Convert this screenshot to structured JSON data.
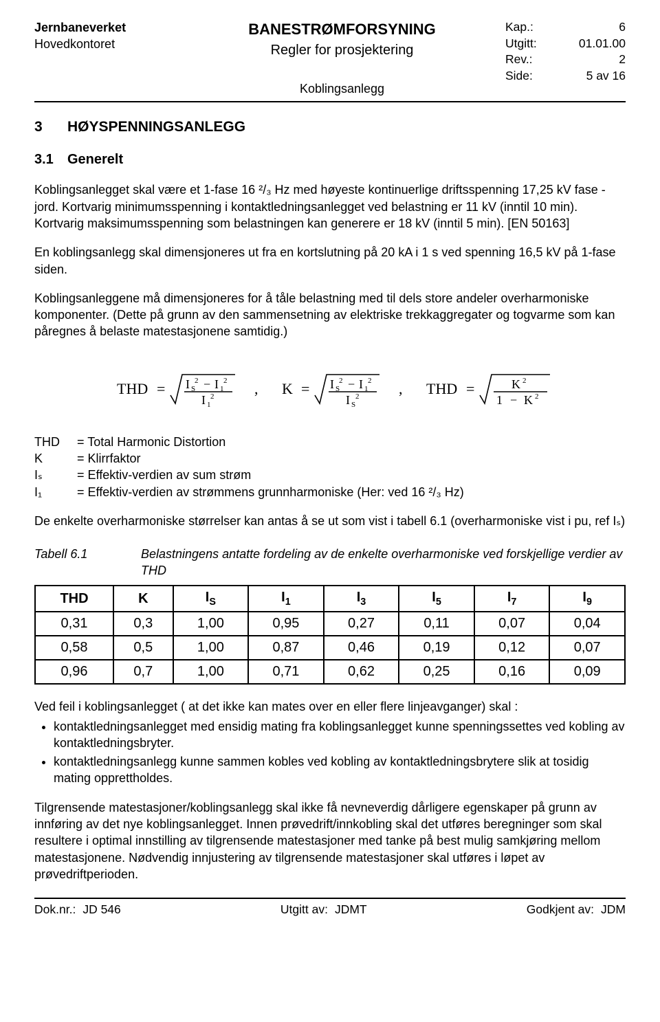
{
  "header": {
    "org": "Jernbaneverket",
    "org2": "Hovedkontoret",
    "title1": "BANESTRØMFORSYNING",
    "title2": "Regler for prosjektering",
    "title3": "Koblingsanlegg",
    "kap_l": "Kap.:",
    "kap_v": "6",
    "utg_l": "Utgitt:",
    "utg_v": "01.01.00",
    "rev_l": "Rev.:",
    "rev_v": "2",
    "side_l": "Side:",
    "side_v": "5 av 16"
  },
  "sec": {
    "num": "3",
    "title": "HØYSPENNINGSANLEGG"
  },
  "sub": {
    "num": "3.1",
    "title": "Generelt"
  },
  "p1": "Koblingsanlegget skal være et 1-fase 16 ²/₃ Hz med høyeste kontinuerlige driftsspenning 17,25 kV fase - jord. Kortvarig minimumsspenning i kontaktledningsanlegget ved belastning er 11 kV (inntil 10 min). Kortvarig maksimumsspenning som belastningen kan generere er 18 kV (inntil 5 min). [EN 50163]",
  "p2": "En koblingsanlegg skal dimensjoneres ut fra en kortslutning på 20 kA i 1 s ved spenning 16,5 kV på 1-fase siden.",
  "p3": "Koblingsanleggene må dimensjoneres for å tåle belastning med til dels store andeler overharmoniske komponenter. (Dette på grunn av den sammensetning av elektriske trekkaggregater og togvarme som kan påregnes å belaste matestasjonene samtidig.)",
  "defs": {
    "thd_l": "THD",
    "thd_v": "= Total Harmonic Distortion",
    "k_l": "K",
    "k_v": "= Klirrfaktor",
    "is_l": "Iₛ",
    "is_v": "= Effektiv-verdien av sum strøm",
    "i1_l": "I₁",
    "i1_v": "= Effektiv-verdien av strømmens grunnharmoniske (Her: ved 16 ²/₃ Hz)"
  },
  "p4": "De enkelte overharmoniske størrelser kan antas å se ut som vist i tabell 6.1 (overharmoniske vist i pu, ref Iₛ)",
  "tbl": {
    "caption_l": "Tabell 6.1",
    "caption_t": "Belastningens antatte fordeling av de enkelte overharmoniske ved forskjellige verdier av THD",
    "headers": [
      "THD",
      "K",
      "Iₛ",
      "I₁",
      "I₃",
      "I₅",
      "I₇",
      "I₉"
    ],
    "rows": [
      [
        "0,31",
        "0,3",
        "1,00",
        "0,95",
        "0,27",
        "0,11",
        "0,07",
        "0,04"
      ],
      [
        "0,58",
        "0,5",
        "1,00",
        "0,87",
        "0,46",
        "0,19",
        "0,12",
        "0,07"
      ],
      [
        "0,96",
        "0,7",
        "1,00",
        "0,71",
        "0,62",
        "0,25",
        "0,16",
        "0,09"
      ]
    ]
  },
  "p5": "Ved feil i koblingsanlegget ( at det ikke kan mates over en eller flere linjeavganger) skal :",
  "bul1": "kontaktledningsanlegget med ensidig mating fra koblingsanlegget kunne spenningssettes ved kobling av kontaktledningsbryter.",
  "bul2": "kontaktledningsanlegg kunne sammen kobles ved kobling av kontaktledningsbrytere slik at tosidig mating  opprettholdes.",
  "p6": "Tilgrensende matestasjoner/koblingsanlegg skal ikke få nevneverdig dårligere egenskaper på grunn av innføring av det nye koblingsanlegget. Innen prøvedrift/innkobling skal det utføres beregninger som skal resultere i optimal innstilling av tilgrensende matestasjoner med tanke på best mulig samkjøring mellom matestasjonene. Nødvendig innjustering av tilgrensende matestasjoner skal utføres i løpet av prøvedriftperioden.",
  "footer": {
    "dok_l": "Dok.nr.:",
    "dok_v": "JD 546",
    "ua_l": "Utgitt av:",
    "ua_v": "JDMT",
    "ga_l": "Godkjent av:",
    "ga_v": "JDM"
  },
  "formula": {
    "f1": "THD",
    "f2": "K",
    "f3": "THD",
    "comma": ","
  }
}
